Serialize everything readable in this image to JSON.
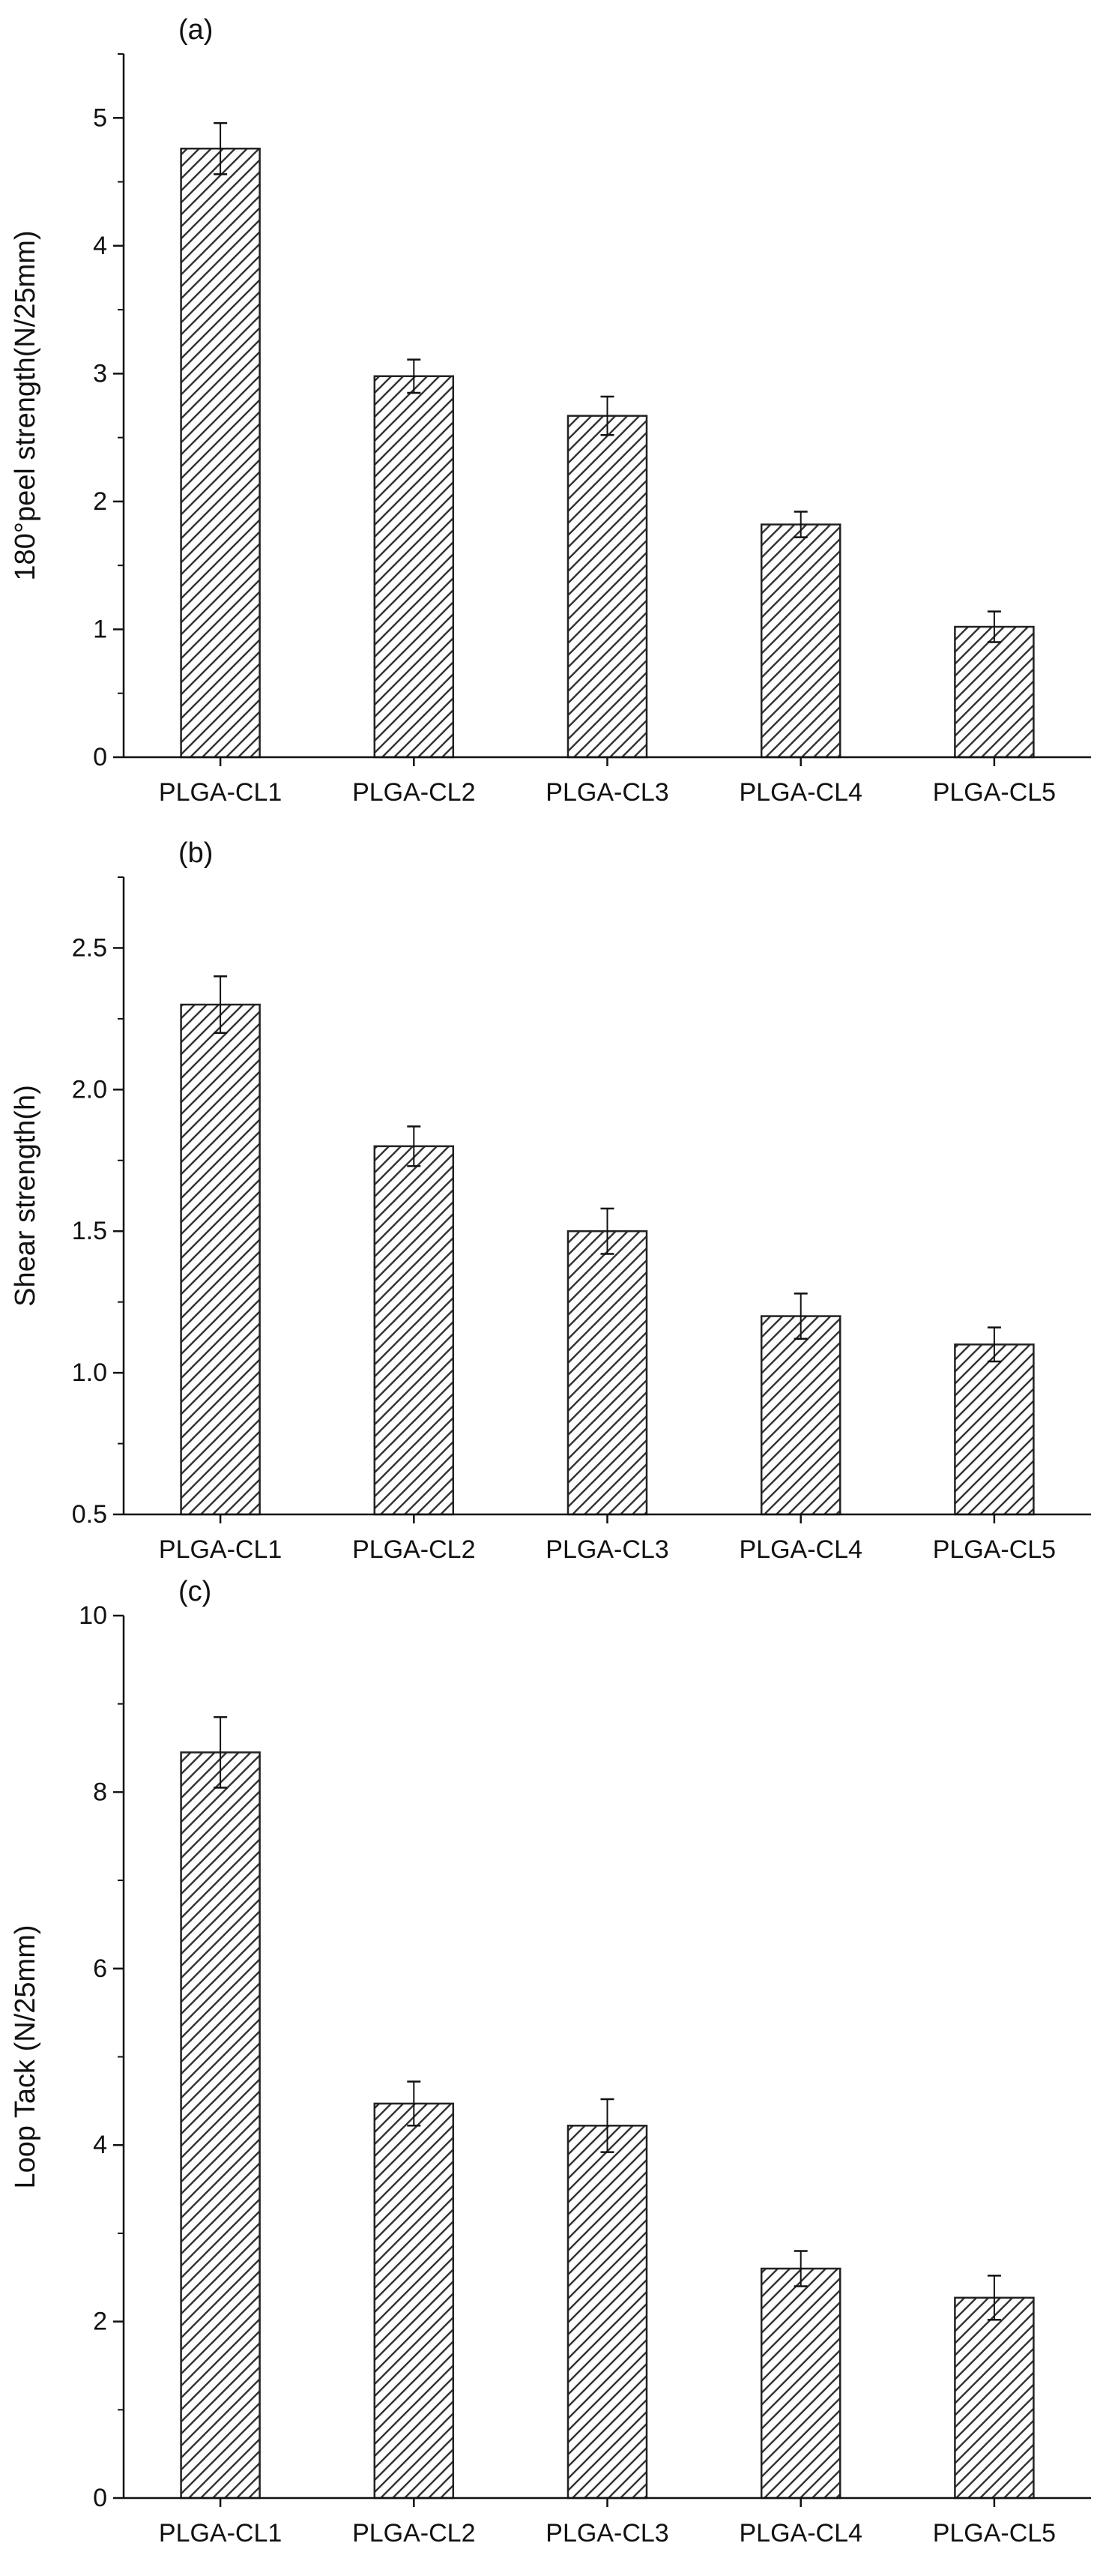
{
  "chart_data": [
    {
      "type": "bar",
      "panel_label": "(a)",
      "title": "",
      "xlabel": "",
      "ylabel": "180°peel strength(N/25mm)",
      "categories": [
        "PLGA-CL1",
        "PLGA-CL2",
        "PLGA-CL3",
        "PLGA-CL4",
        "PLGA-CL5"
      ],
      "values": [
        4.76,
        2.98,
        2.67,
        1.82,
        1.02
      ],
      "errors": [
        0.2,
        0.13,
        0.15,
        0.1,
        0.12
      ],
      "ylim": [
        0,
        5.5
      ],
      "yticks": [
        0,
        1,
        2,
        3,
        4,
        5
      ],
      "ytick_labels": [
        "0",
        "1",
        "2",
        "3",
        "4",
        "5"
      ],
      "grid": false,
      "legend": "none",
      "bar_fill": "diagonal-hatch"
    },
    {
      "type": "bar",
      "panel_label": "(b)",
      "title": "",
      "xlabel": "",
      "ylabel": "Shear strength(h)",
      "categories": [
        "PLGA-CL1",
        "PLGA-CL2",
        "PLGA-CL3",
        "PLGA-CL4",
        "PLGA-CL5"
      ],
      "values": [
        2.3,
        1.8,
        1.5,
        1.2,
        1.1
      ],
      "errors": [
        0.1,
        0.07,
        0.08,
        0.08,
        0.06
      ],
      "ylim": [
        0.5,
        2.75
      ],
      "yticks": [
        0.5,
        1.0,
        1.5,
        2.0,
        2.5
      ],
      "ytick_labels": [
        "0.5",
        "1.0",
        "1.5",
        "2.0",
        "2.5"
      ],
      "grid": false,
      "legend": "none",
      "bar_fill": "diagonal-hatch"
    },
    {
      "type": "bar",
      "panel_label": "(c)",
      "title": "",
      "xlabel": "",
      "ylabel": "Loop Tack (N/25mm)",
      "categories": [
        "PLGA-CL1",
        "PLGA-CL2",
        "PLGA-CL3",
        "PLGA-CL4",
        "PLGA-CL5"
      ],
      "values": [
        8.45,
        4.47,
        4.22,
        2.6,
        2.27
      ],
      "errors": [
        0.4,
        0.25,
        0.3,
        0.2,
        0.25
      ],
      "ylim": [
        0,
        10
      ],
      "yticks": [
        0,
        2,
        4,
        6,
        8,
        10
      ],
      "ytick_labels": [
        "0",
        "2",
        "4",
        "6",
        "8",
        "10"
      ],
      "grid": false,
      "legend": "none",
      "bar_fill": "diagonal-hatch"
    }
  ],
  "colors": {
    "axis": "#111111",
    "bar_stroke": "#222222",
    "hatch": "#333333",
    "background": "#ffffff"
  }
}
